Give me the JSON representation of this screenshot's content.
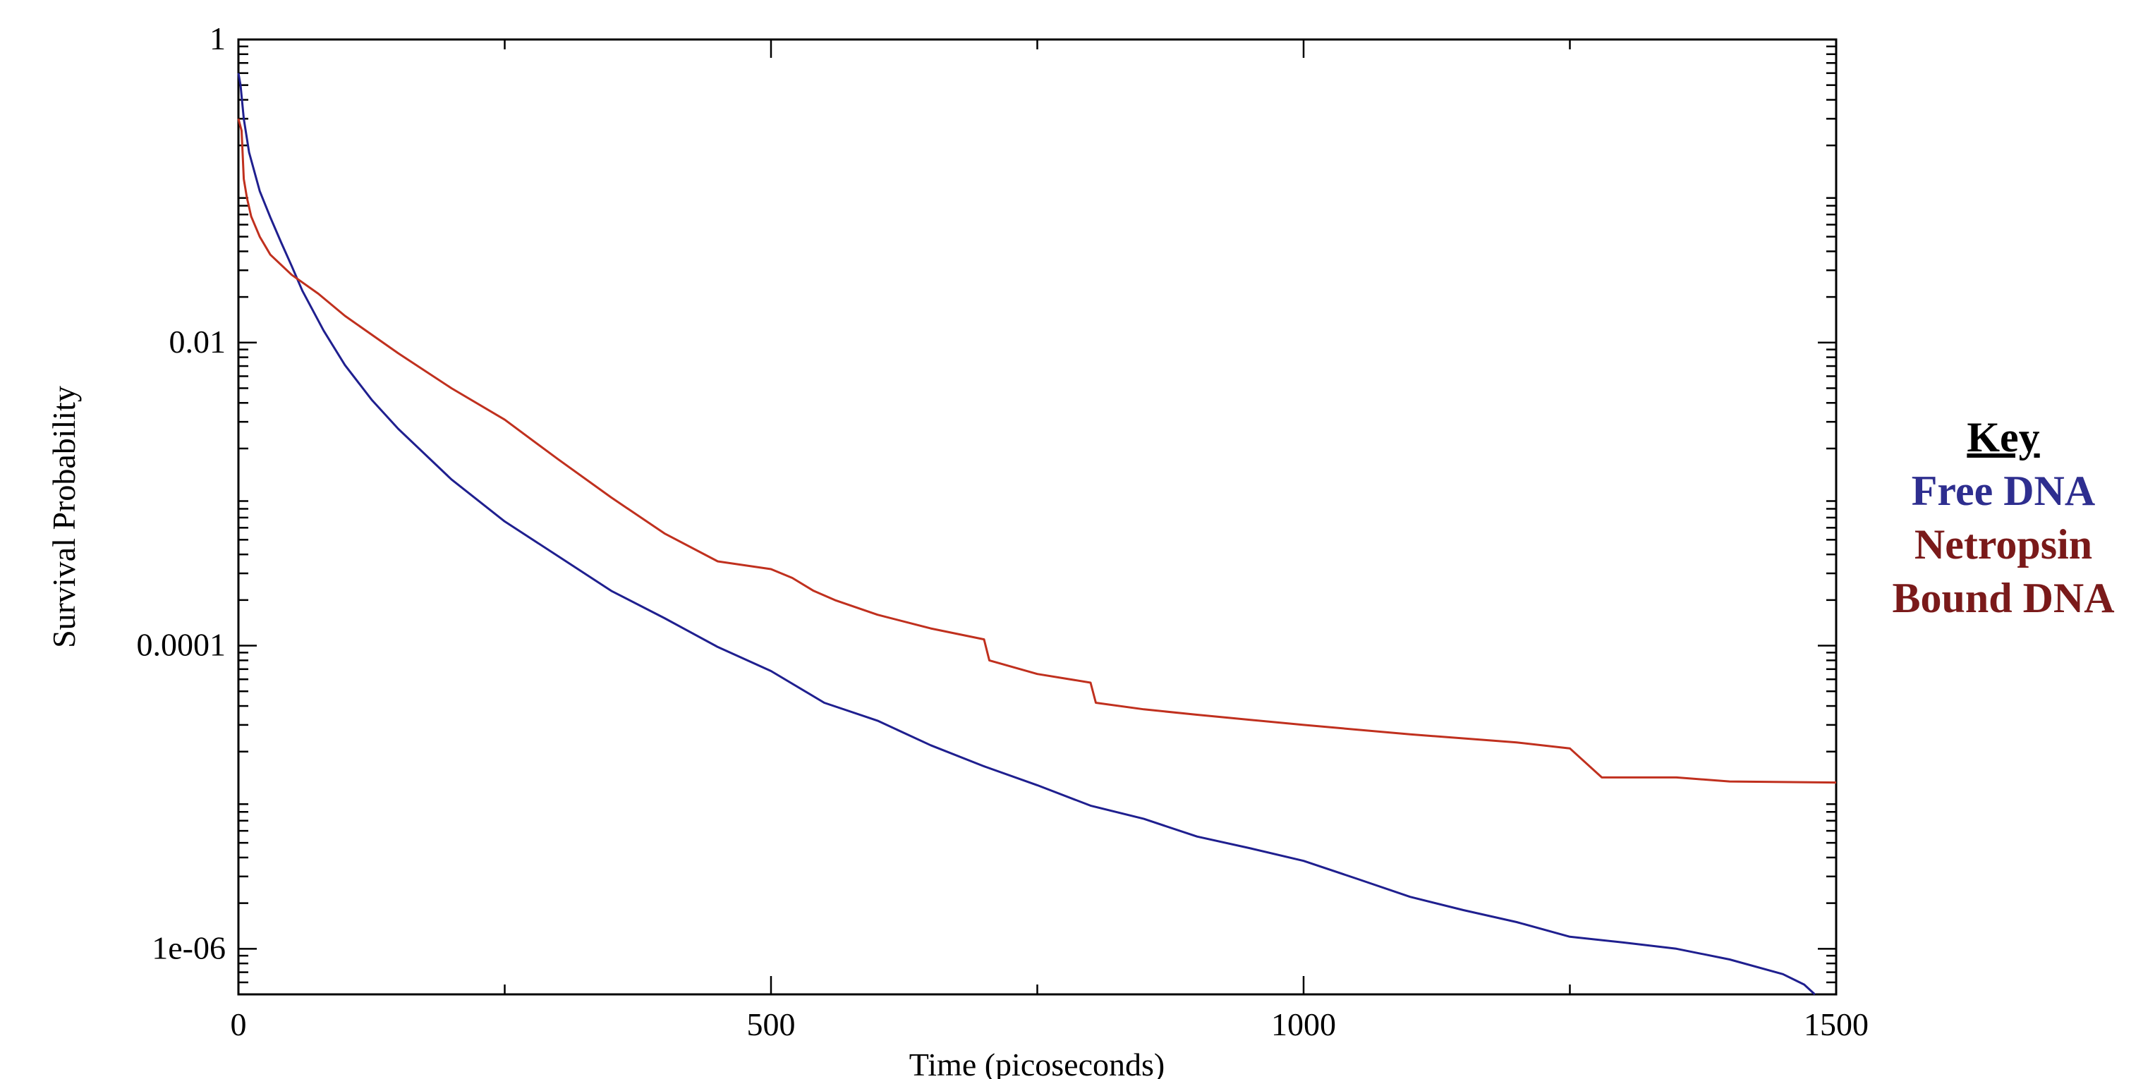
{
  "chart_data": {
    "type": "line",
    "xlabel": "Time (picoseconds)",
    "ylabel": "Survival Probability",
    "xlim": [
      0,
      1500
    ],
    "ylim": [
      5e-07,
      1
    ],
    "yscale": "log",
    "x_ticks": [
      0,
      500,
      1000,
      1500
    ],
    "x_tick_labels": [
      "0",
      "500",
      "1000",
      "1500"
    ],
    "y_ticks": [
      1,
      0.01,
      0.0001,
      1e-06
    ],
    "y_tick_labels": [
      "1",
      "0.01",
      "0.0001",
      "1e-06"
    ],
    "grid": false,
    "series": [
      {
        "name": "Free DNA",
        "color": "#1f1f8f",
        "x": [
          0,
          2,
          5,
          10,
          20,
          30,
          40,
          50,
          60,
          80,
          100,
          125,
          150,
          200,
          250,
          300,
          350,
          400,
          450,
          500,
          550,
          600,
          650,
          700,
          750,
          800,
          850,
          900,
          950,
          1000,
          1050,
          1100,
          1150,
          1200,
          1250,
          1300,
          1350,
          1400,
          1450,
          1470,
          1480
        ],
        "y": [
          0.6,
          0.5,
          0.3,
          0.18,
          0.1,
          0.067,
          0.046,
          0.032,
          0.022,
          0.012,
          0.0071,
          0.0042,
          0.0027,
          0.00125,
          0.00066,
          0.00039,
          0.00023,
          0.000152,
          9.8e-05,
          6.8e-05,
          4.2e-05,
          3.2e-05,
          2.2e-05,
          1.6e-05,
          1.2e-05,
          8.8e-06,
          7.2e-06,
          5.5e-06,
          4.6e-06,
          3.8e-06,
          2.9e-06,
          2.2e-06,
          1.8e-06,
          1.5e-06,
          1.2e-06,
          1.1e-06,
          1e-06,
          8.5e-07,
          6.8e-07,
          5.8e-07,
          5e-07
        ]
      },
      {
        "name": "Netropsin Bound DNA",
        "color": "#c0301e",
        "x": [
          0,
          3,
          5,
          8,
          12,
          20,
          30,
          50,
          75,
          100,
          150,
          200,
          250,
          300,
          350,
          400,
          450,
          500,
          520,
          540,
          560,
          600,
          650,
          700,
          705,
          750,
          800,
          805,
          850,
          900,
          1000,
          1100,
          1200,
          1250,
          1280,
          1350,
          1400,
          1500
        ],
        "y": [
          0.3,
          0.25,
          0.12,
          0.09,
          0.068,
          0.05,
          0.038,
          0.028,
          0.021,
          0.015,
          0.0085,
          0.005,
          0.0031,
          0.0017,
          0.00095,
          0.00055,
          0.00036,
          0.00032,
          0.00028,
          0.00023,
          0.0002,
          0.00016,
          0.00013,
          0.00011,
          8e-05,
          6.5e-05,
          5.7e-05,
          4.2e-05,
          3.8e-05,
          3.5e-05,
          3e-05,
          2.6e-05,
          2.3e-05,
          2.1e-05,
          1.35e-05,
          1.35e-05,
          1.27e-05,
          1.25e-05
        ]
      }
    ]
  },
  "key": {
    "title": "Key",
    "free_label": "Free DNA",
    "bound_label_line1": "Netropsin",
    "bound_label_line2": "Bound DNA"
  }
}
